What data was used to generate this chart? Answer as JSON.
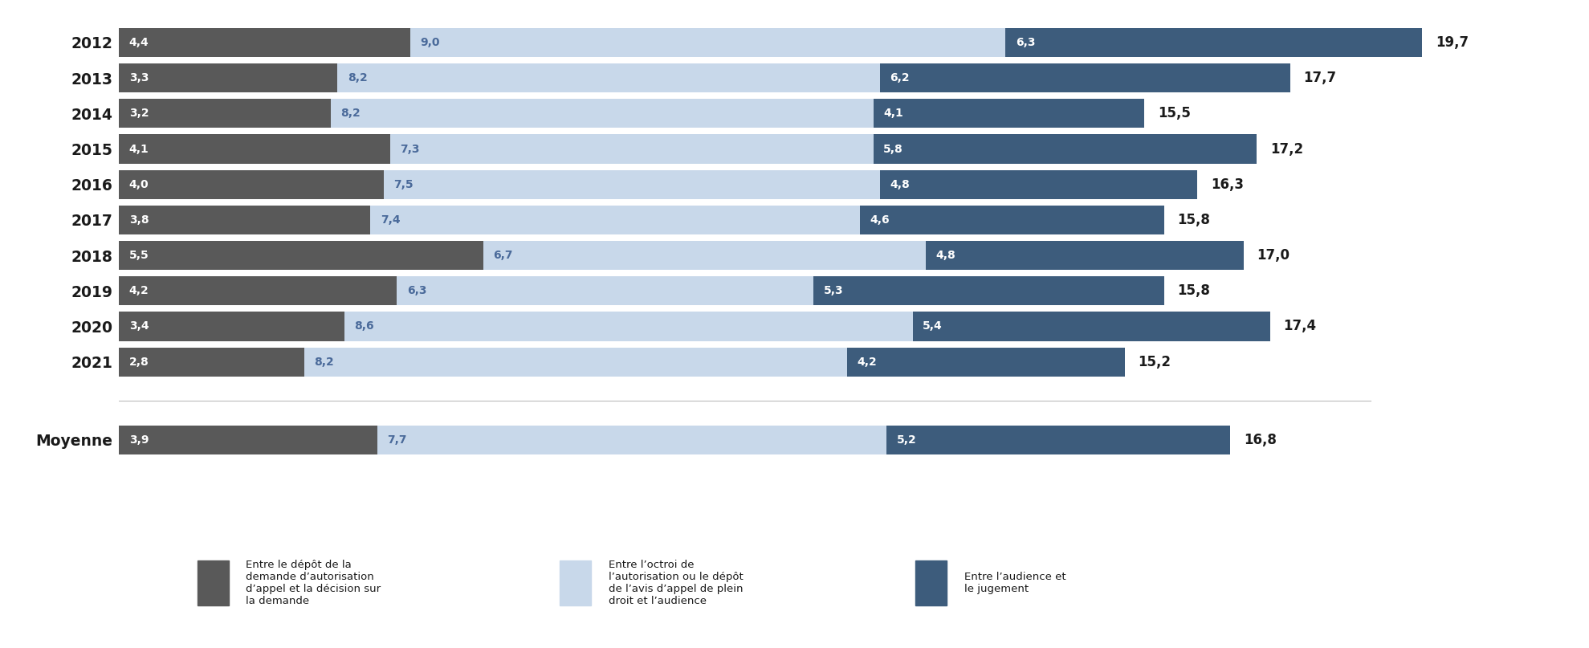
{
  "years": [
    "2012",
    "2013",
    "2014",
    "2015",
    "2016",
    "2017",
    "2018",
    "2019",
    "2020",
    "2021"
  ],
  "moyenne_label": "Moyenne",
  "seg1": [
    4.4,
    3.3,
    3.2,
    4.1,
    4.0,
    3.8,
    5.5,
    4.2,
    3.4,
    2.8
  ],
  "seg2": [
    9.0,
    8.2,
    8.2,
    7.3,
    7.5,
    7.4,
    6.7,
    6.3,
    8.6,
    8.2
  ],
  "seg3": [
    6.3,
    6.2,
    4.1,
    5.8,
    4.8,
    4.6,
    4.8,
    5.3,
    5.4,
    4.2
  ],
  "totals": [
    19.7,
    17.7,
    15.5,
    17.2,
    16.3,
    15.8,
    17.0,
    15.8,
    17.4,
    15.2
  ],
  "moy_seg1": 3.9,
  "moy_seg2": 7.7,
  "moy_seg3": 5.2,
  "moy_total": 16.8,
  "color1": "#595959",
  "color2": "#c8d8ea",
  "color3": "#3d5c7c",
  "background": "#ffffff",
  "bar_height": 0.82,
  "legend1": "Entre le dépôt de la\ndemande d’autorisation\nd’appel et la décision sur\nla demande",
  "legend2": "Entre l’octroi de\nl’autorisation ou le dépôt\nde l’avis d’appel de plein\ndroit et l’audience",
  "legend3": "Entre l’audience et\nle jugement",
  "label_fontsize": 10,
  "tick_fontsize": 13.5,
  "total_fontsize": 12,
  "inner_label_color1": "#ffffff",
  "inner_label_color2": "#4a6a9a",
  "inner_label_color3": "#ffffff",
  "total_label_color": "#1a1a1a"
}
